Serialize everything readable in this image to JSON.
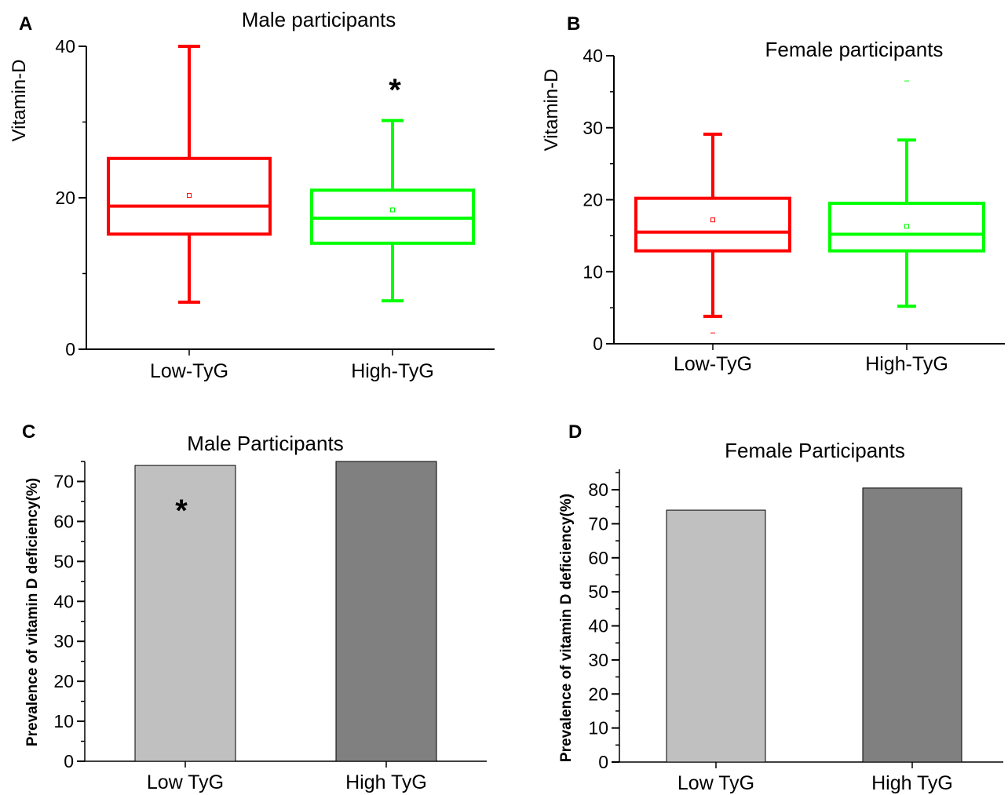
{
  "chart_data": [
    {
      "panel": "A",
      "type": "box",
      "title": "Male participants",
      "xlabel": "",
      "ylabel": "Vitamin-D",
      "ylim": [
        0,
        40
      ],
      "yticks": [
        0,
        20,
        40
      ],
      "categories": [
        "Low-TyG",
        "High-TyG"
      ],
      "colors": [
        "#ff0000",
        "#00ff00"
      ],
      "boxes": [
        {
          "whisker_low": 6.2,
          "q1": 15.2,
          "median": 18.9,
          "q3": 25.2,
          "whisker_high": 40,
          "mean": 20.3
        },
        {
          "whisker_low": 6.4,
          "q1": 14.0,
          "median": 17.3,
          "q3": 21.0,
          "whisker_high": 30.2,
          "mean": 18.4
        }
      ],
      "outliers": [
        [],
        []
      ],
      "annotations": [
        {
          "text": "*",
          "category": "High-TyG",
          "y": 35
        }
      ]
    },
    {
      "panel": "B",
      "type": "box",
      "title": "Female participants",
      "xlabel": "",
      "ylabel": "Vitamin-D",
      "ylim": [
        0,
        40
      ],
      "yticks": [
        0,
        10,
        20,
        30,
        40
      ],
      "categories": [
        "Low-TyG",
        "High-TyG"
      ],
      "colors": [
        "#ff0000",
        "#00ff00"
      ],
      "boxes": [
        {
          "whisker_low": 3.8,
          "q1": 12.9,
          "median": 15.5,
          "q3": 20.2,
          "whisker_high": 29.1,
          "mean": 17.2
        },
        {
          "whisker_low": 5.2,
          "q1": 12.9,
          "median": 15.2,
          "q3": 19.5,
          "whisker_high": 28.3,
          "mean": 16.3
        }
      ],
      "outliers": [
        [
          1.5
        ],
        [
          36.5
        ]
      ],
      "annotations": []
    },
    {
      "panel": "C",
      "type": "bar",
      "title": "Male Participants",
      "xlabel": "",
      "ylabel": "Prevalence of vitamin D deficiency(%)",
      "ylim": [
        0,
        75
      ],
      "yticks": [
        0,
        10,
        20,
        30,
        40,
        50,
        60,
        70
      ],
      "categories": [
        "Low TyG",
        "High TyG"
      ],
      "values": [
        74,
        75
      ],
      "colors": [
        "#c0c0c0",
        "#808080"
      ],
      "annotations": [
        {
          "text": "*",
          "category": "Low TyG",
          "y": 62
        }
      ]
    },
    {
      "panel": "D",
      "type": "bar",
      "title": "Female Participants",
      "xlabel": "",
      "ylabel": "Prevalence of vitamin D deficiency(%)",
      "ylim": [
        0,
        86
      ],
      "yticks": [
        0,
        10,
        20,
        30,
        40,
        50,
        60,
        70,
        80
      ],
      "categories": [
        "Low TyG",
        "High TyG"
      ],
      "values": [
        74,
        80.5
      ],
      "colors": [
        "#c0c0c0",
        "#808080"
      ],
      "annotations": []
    }
  ]
}
